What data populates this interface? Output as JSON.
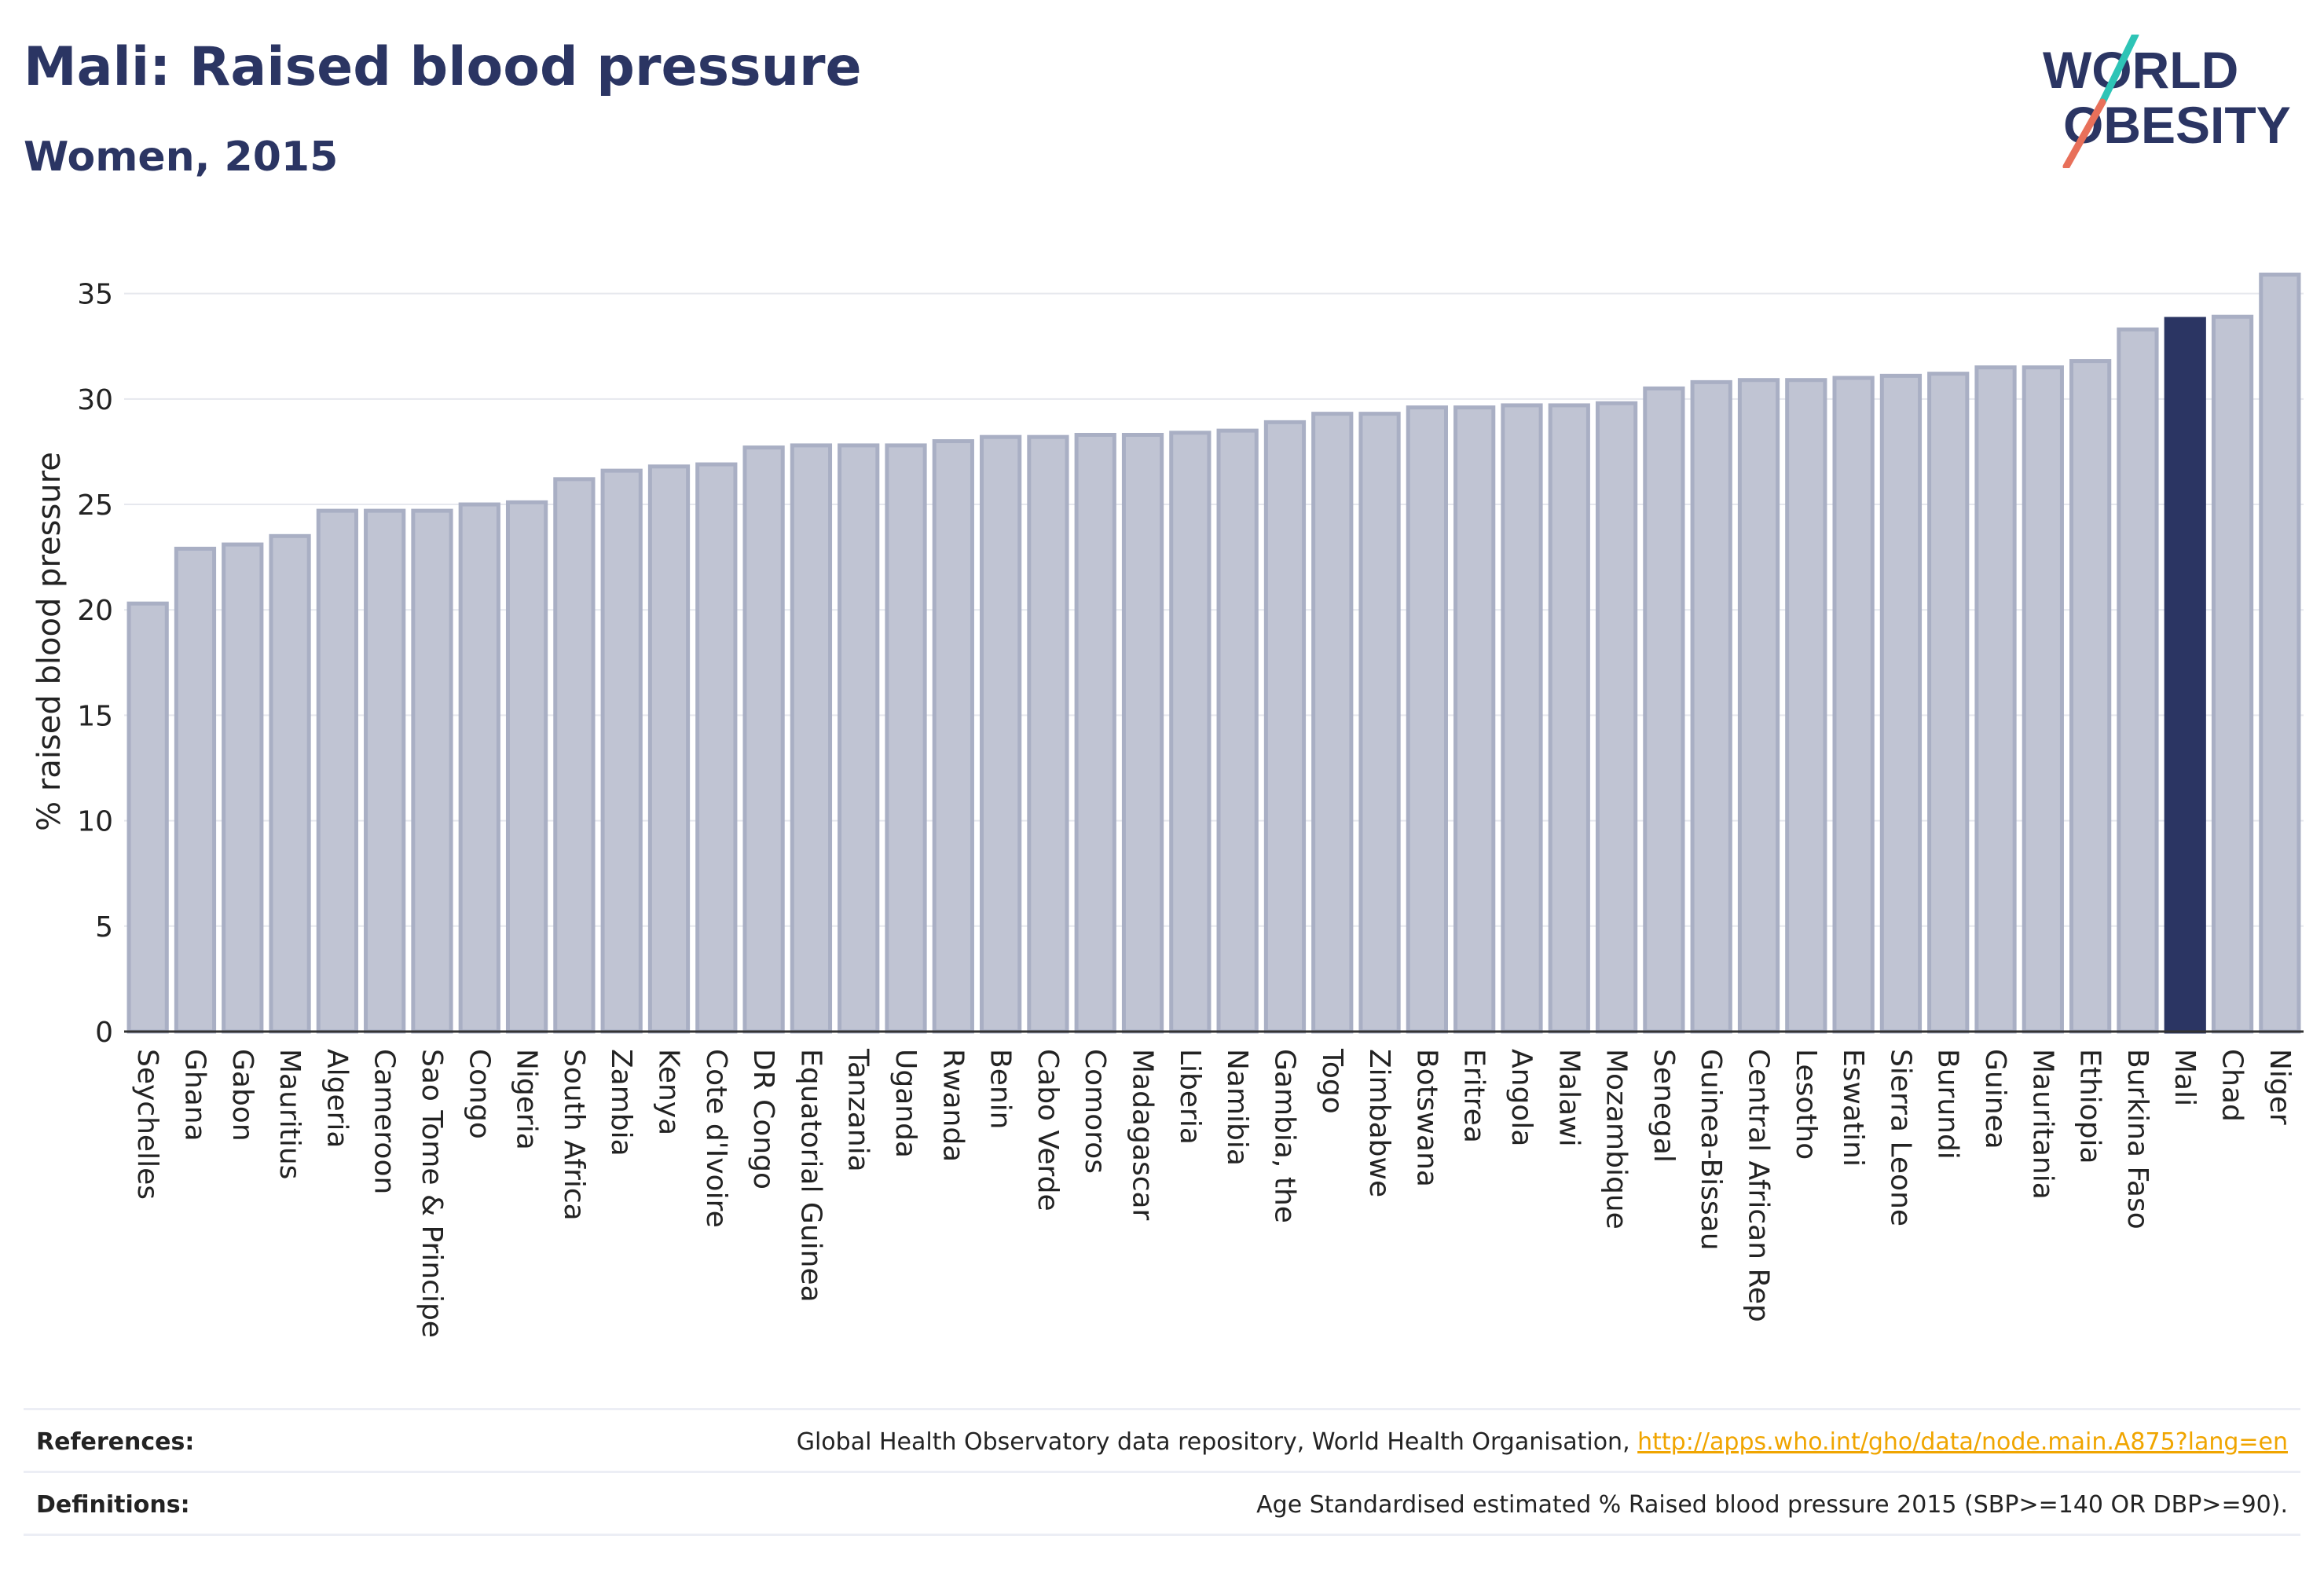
{
  "header": {
    "title": "Mali: Raised blood pressure",
    "subtitle": "Women, 2015"
  },
  "logo": {
    "line1": "WORLD",
    "line2": "OBESITY",
    "accent_teal": "#2ec4b6",
    "accent_red": "#e8705a"
  },
  "colors": {
    "bar": "#c0c4d3",
    "bar_border": "#a9afc4",
    "highlight": "#2b3563",
    "grid": "#e6e8ee",
    "axis": "#333333"
  },
  "chart_data": {
    "type": "bar",
    "ylabel": "% raised blood pressure",
    "ylim": [
      0,
      37
    ],
    "yticks": [
      0,
      5,
      10,
      15,
      20,
      25,
      30,
      35
    ],
    "grid": true,
    "highlight": "Mali",
    "categories": [
      "Seychelles",
      "Ghana",
      "Gabon",
      "Mauritius",
      "Algeria",
      "Cameroon",
      "Sao Tome & Principe",
      "Congo",
      "Nigeria",
      "South Africa",
      "Zambia",
      "Kenya",
      "Cote d'Ivoire",
      "DR Congo",
      "Equatorial Guinea",
      "Tanzania",
      "Uganda",
      "Rwanda",
      "Benin",
      "Cabo Verde",
      "Comoros",
      "Madagascar",
      "Liberia",
      "Namibia",
      "Gambia, the",
      "Togo",
      "Zimbabwe",
      "Botswana",
      "Eritrea",
      "Angola",
      "Malawi",
      "Mozambique",
      "Senegal",
      "Guinea-Bissau",
      "Central African Rep",
      "Lesotho",
      "Eswatini",
      "Sierra Leone",
      "Burundi",
      "Guinea",
      "Mauritania",
      "Ethiopia",
      "Burkina Faso",
      "Mali",
      "Chad",
      "Niger"
    ],
    "values": [
      20.3,
      22.9,
      23.1,
      23.5,
      24.7,
      24.7,
      24.7,
      25.0,
      25.1,
      26.2,
      26.6,
      26.8,
      26.9,
      27.7,
      27.8,
      27.8,
      27.8,
      28.0,
      28.2,
      28.2,
      28.3,
      28.3,
      28.4,
      28.5,
      28.9,
      29.3,
      29.3,
      29.6,
      29.6,
      29.7,
      29.7,
      29.8,
      30.5,
      30.8,
      30.9,
      30.9,
      31.0,
      31.1,
      31.2,
      31.5,
      31.5,
      31.8,
      33.3,
      33.8,
      33.9,
      35.9
    ]
  },
  "footer": {
    "references_label": "References:",
    "references_text": "Global Health Observatory data repository, World Health Organisation, ",
    "references_link": "http://apps.who.int/gho/data/node.main.A875?lang=en",
    "definitions_label": "Definitions:",
    "definitions_text": "Age Standardised estimated % Raised blood pressure 2015 (SBP>=140 OR DBP>=90)."
  }
}
